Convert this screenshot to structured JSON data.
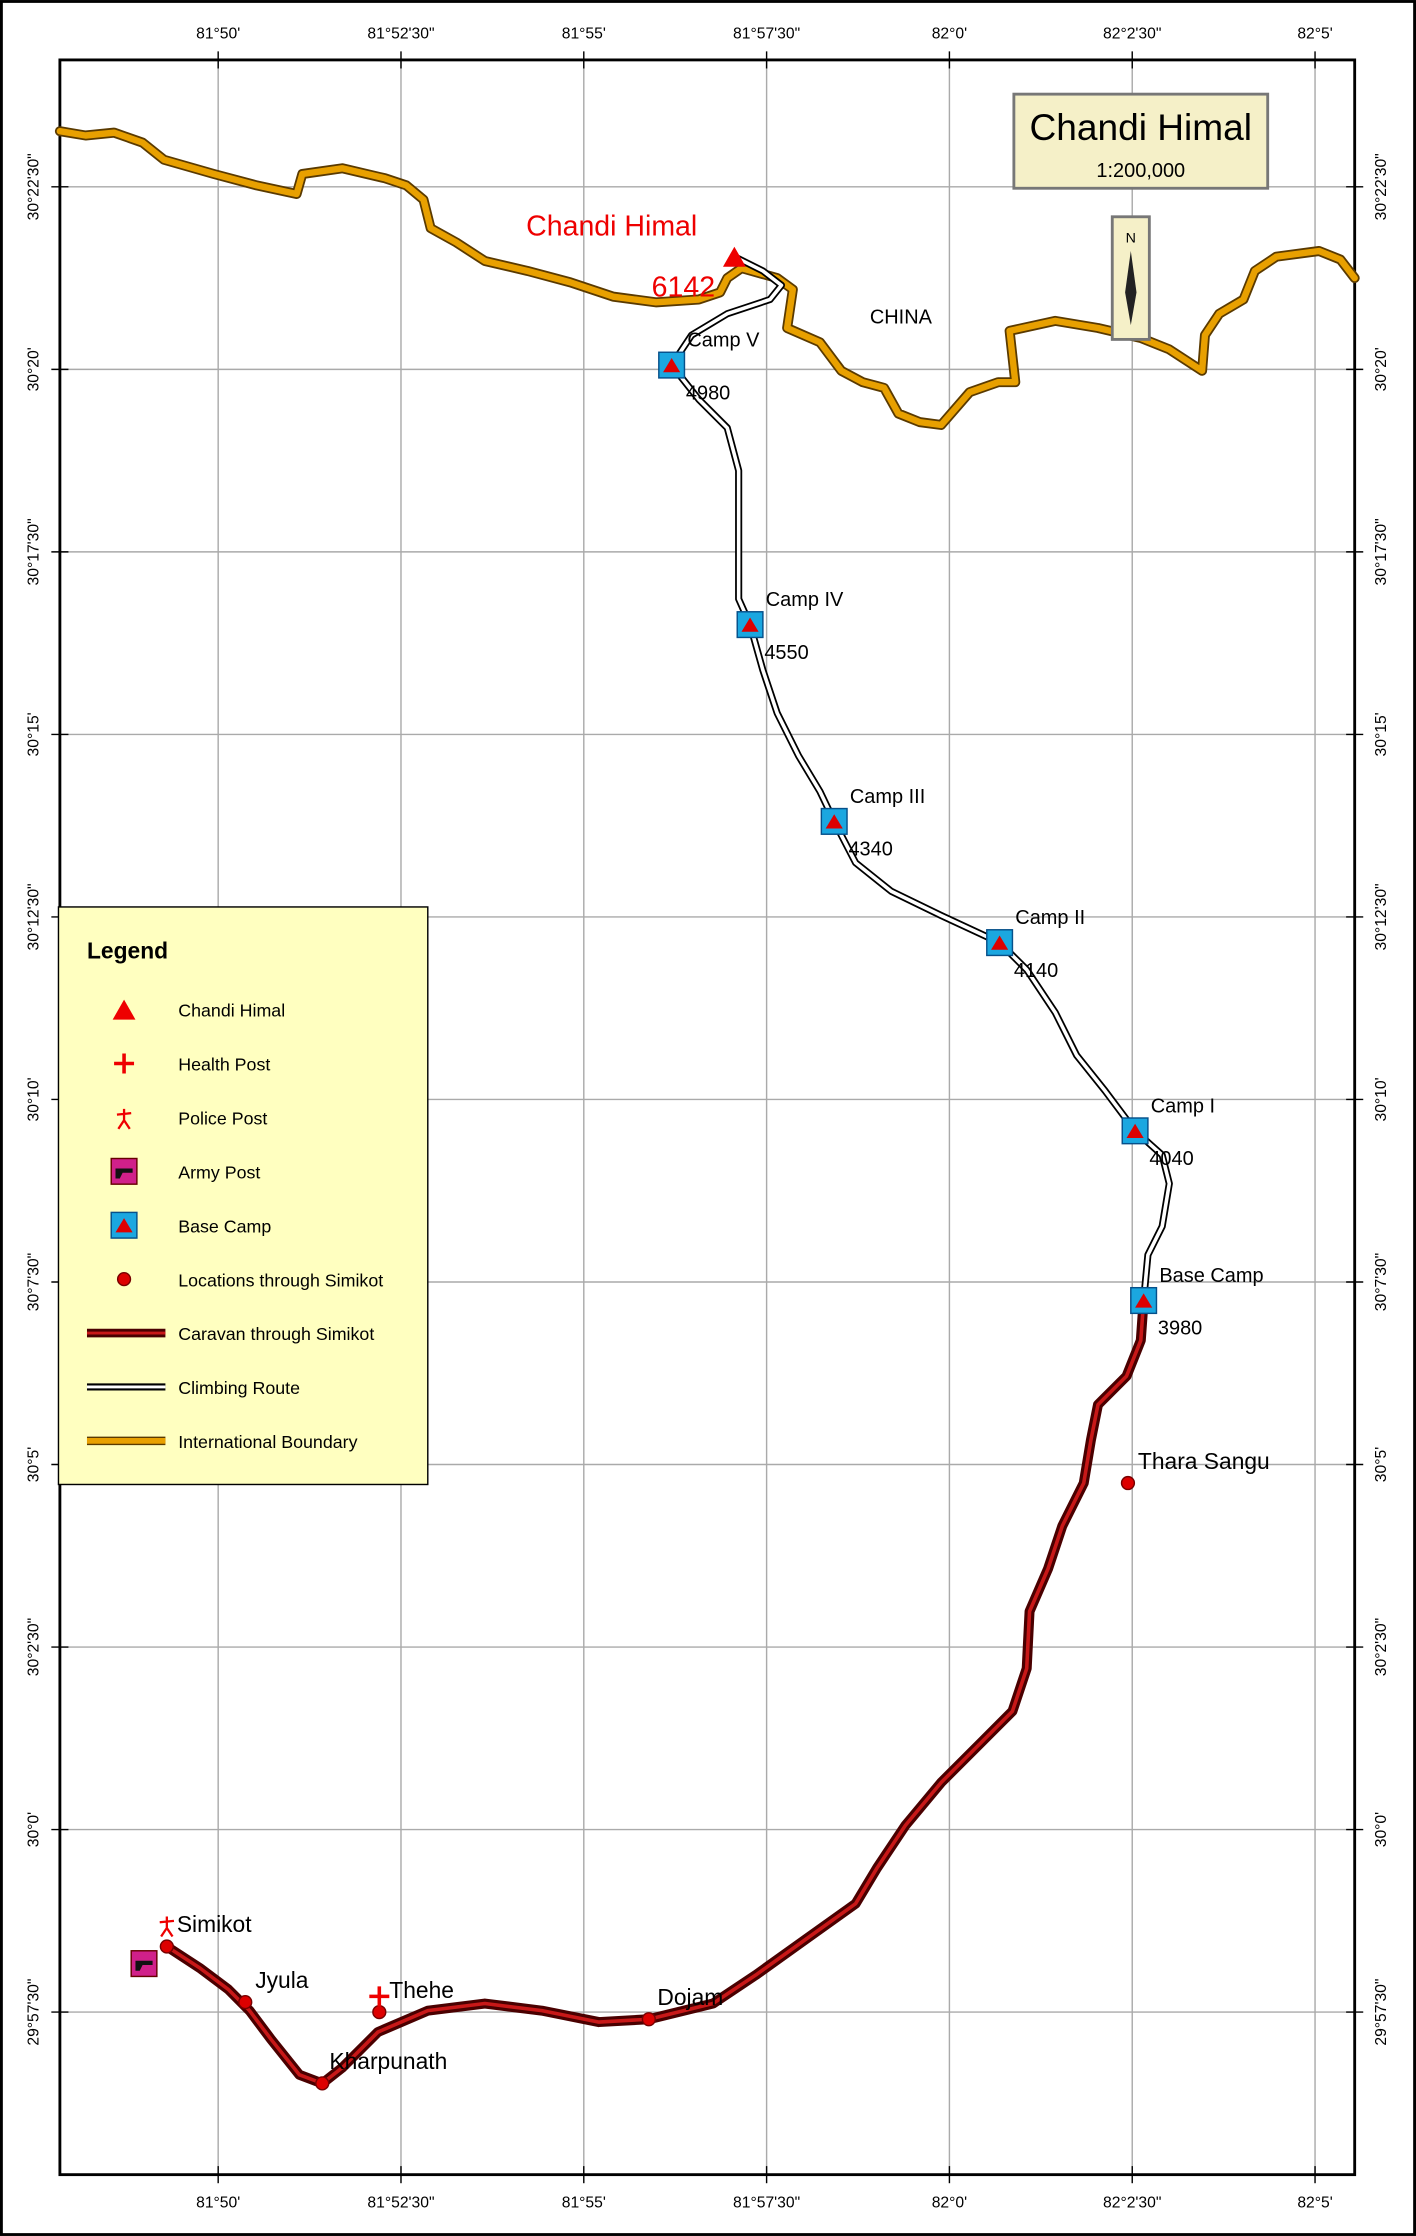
{
  "title": "Chandi Himal",
  "scale": "1:200,000",
  "north": "N",
  "country": "CHINA",
  "peak": {
    "name": "Chandi Himal",
    "elevation": 6142
  },
  "camps": [
    {
      "name": "Camp V",
      "elevation": 4980
    },
    {
      "name": "Camp IV",
      "elevation": 4550
    },
    {
      "name": "Camp III",
      "elevation": 4340
    },
    {
      "name": "Camp II",
      "elevation": 4140
    },
    {
      "name": "Camp I",
      "elevation": 4040
    },
    {
      "name": "Base Camp",
      "elevation": 3980
    }
  ],
  "locations": [
    "Simikot",
    "Jyula",
    "Thehe",
    "Kharpunath",
    "Dojam",
    "Thara Sangu"
  ],
  "legend": {
    "title": "Legend",
    "items": [
      "Chandi Himal",
      "Health Post",
      "Police Post",
      "Army Post",
      "Base Camp",
      "Locations through Simikot",
      "Caravan through Simikot",
      "Climbing Route",
      "International Boundary"
    ]
  },
  "graticule": {
    "longitudes": [
      "81°50'",
      "81°52'30\"",
      "81°55'",
      "81°57'30\"",
      "82°0'",
      "82°2'30\"",
      "82°5'"
    ],
    "latitudes": [
      "30°22'30\"",
      "30°20'",
      "30°17'30\"",
      "30°15'",
      "30°12'30\"",
      "30°10'",
      "30°7'30\"",
      "30°5'",
      "30°2'30\"",
      "30°0'",
      "29°57'30\""
    ]
  }
}
